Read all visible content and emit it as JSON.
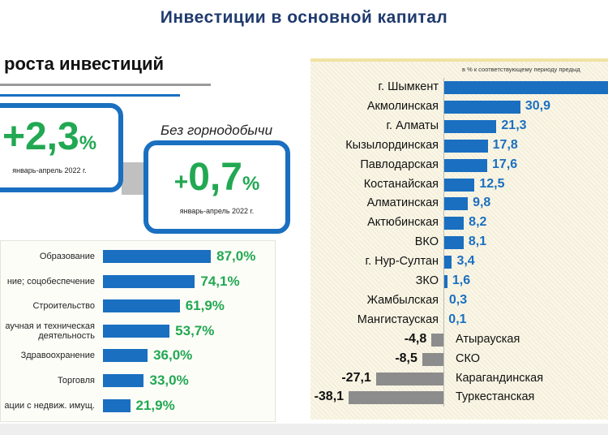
{
  "header": {
    "title": "Инвестиции в основной капитал"
  },
  "section": {
    "subtitle": "роста инвестиций"
  },
  "kpis": [
    {
      "sign": "+",
      "value": "2,3",
      "unit": "%",
      "period": "январь-апрель 2022 г."
    },
    {
      "caption": "Без горнодобычи",
      "sign": "+",
      "value": "0,7",
      "unit": "%",
      "period": "январь-апрель 2022 г."
    }
  ],
  "colors": {
    "bar_blue": "#1a6fc0",
    "bar_gray": "#8c8c8c",
    "value_blue": "#1a6fc0",
    "value_green": "#22a852",
    "title": "#1f3a6e"
  },
  "chart_data": [
    {
      "type": "bar",
      "orientation": "horizontal",
      "categories": [
        "Образование",
        "ние; соцобеспечение",
        "Строительство",
        "аучная и техническая деятельность",
        "Здравоохранение",
        "Торговля",
        "ации с недвиж. имущ."
      ],
      "values": [
        87.0,
        74.1,
        61.9,
        53.7,
        36.0,
        33.0,
        21.9
      ],
      "labels": [
        "87,0%",
        "74,1%",
        "61,9%",
        "53,7%",
        "36,0%",
        "33,0%",
        "21,9%"
      ]
    },
    {
      "type": "bar",
      "orientation": "horizontal",
      "note": "в % к соответствующему периоду предыд",
      "categories": [
        "г. Шымкент",
        "Акмолинская",
        "г. Алматы",
        "Кызылординская",
        "Павлодарская",
        "Костанайская",
        "Алматинская",
        "Актюбинская",
        "ВКО",
        "г. Нур-Султан",
        "ЗКО",
        "Жамбылская",
        "Мангистауская",
        "Атырауская",
        "СКО",
        "Карагандинская",
        "Туркестанская"
      ],
      "values": [
        null,
        30.9,
        21.3,
        17.8,
        17.6,
        12.5,
        9.8,
        8.2,
        8.1,
        3.4,
        1.6,
        0.3,
        0.1,
        -4.8,
        -8.5,
        -27.1,
        -38.1
      ],
      "labels": [
        "",
        "30,9",
        "21,3",
        "17,8",
        "17,6",
        "12,5",
        "9,8",
        "8,2",
        "8,1",
        "3,4",
        "1,6",
        "0,3",
        "0,1",
        "-4,8",
        "-8,5",
        "-27,1",
        "-38,1"
      ]
    }
  ]
}
